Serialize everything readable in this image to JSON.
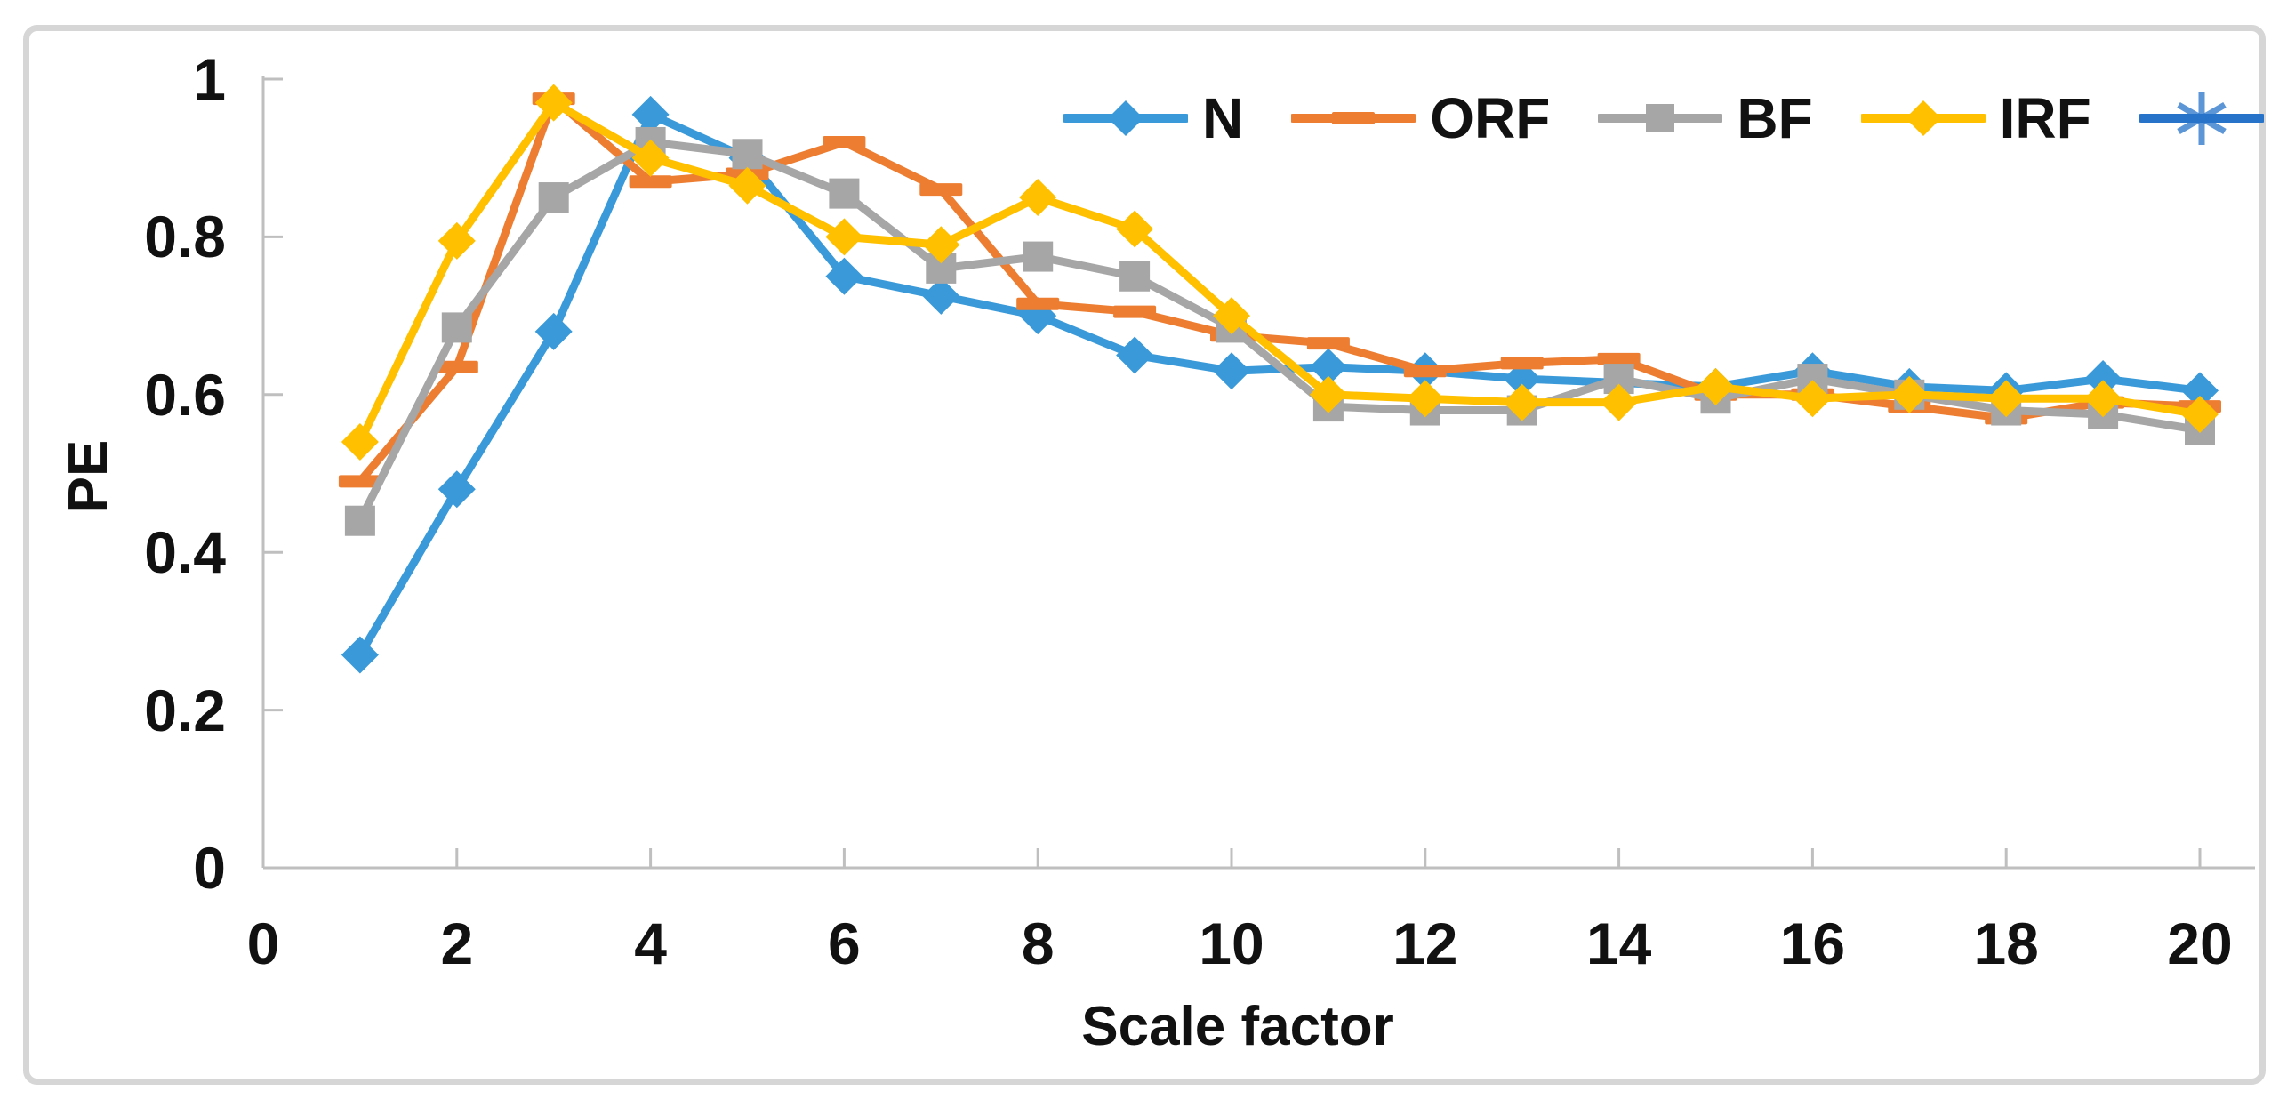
{
  "chart_data": {
    "type": "line",
    "title": "",
    "xlabel": "Scale factor",
    "ylabel": "PE",
    "x": [
      1,
      2,
      3,
      4,
      5,
      6,
      7,
      8,
      9,
      10,
      11,
      12,
      13,
      14,
      15,
      16,
      17,
      18,
      19,
      20
    ],
    "series": [
      {
        "name": "N",
        "color": "#3A9AD9",
        "marker": "diamond",
        "values": [
          0.27,
          0.48,
          0.68,
          0.955,
          0.9,
          0.75,
          0.725,
          0.7,
          0.65,
          0.63,
          0.635,
          0.63,
          0.62,
          0.615,
          0.61,
          0.63,
          0.61,
          0.605,
          0.62,
          0.605
        ]
      },
      {
        "name": "ORF",
        "color": "#ED7D31",
        "marker": "dash",
        "values": [
          0.49,
          0.635,
          0.975,
          0.87,
          0.88,
          0.92,
          0.86,
          0.715,
          0.705,
          0.675,
          0.665,
          0.63,
          0.64,
          0.645,
          0.6,
          0.6,
          0.585,
          0.57,
          0.59,
          0.585
        ]
      },
      {
        "name": "BF",
        "color": "#A6A6A6",
        "marker": "square",
        "values": [
          0.44,
          0.685,
          0.85,
          0.92,
          0.905,
          0.855,
          0.76,
          0.775,
          0.75,
          0.685,
          0.585,
          0.58,
          0.58,
          0.62,
          0.595,
          0.62,
          0.6,
          0.58,
          0.575,
          0.555
        ]
      },
      {
        "name": "IRF",
        "color": "#FFC000",
        "marker": "diamond",
        "values": [
          0.54,
          0.795,
          0.97,
          0.9,
          0.865,
          0.8,
          0.79,
          0.85,
          0.81,
          0.7,
          0.6,
          0.595,
          0.59,
          0.59,
          0.61,
          0.595,
          0.6,
          0.595,
          0.595,
          0.575
        ]
      },
      {
        "name": "",
        "color": "#2673C9",
        "marker": "asterisk",
        "values": []
      }
    ],
    "xlim": [
      0,
      20
    ],
    "ylim": [
      0,
      1
    ],
    "x_tick_labels": [
      "0",
      "2",
      "4",
      "6",
      "8",
      "10",
      "12",
      "14",
      "16",
      "18",
      "20"
    ],
    "y_tick_labels": [
      "0",
      "0.2",
      "0.4",
      "0.6",
      "0.8",
      "1"
    ],
    "grid": false,
    "legend_position": "top-right",
    "axis_color": "#BFBFBF"
  }
}
